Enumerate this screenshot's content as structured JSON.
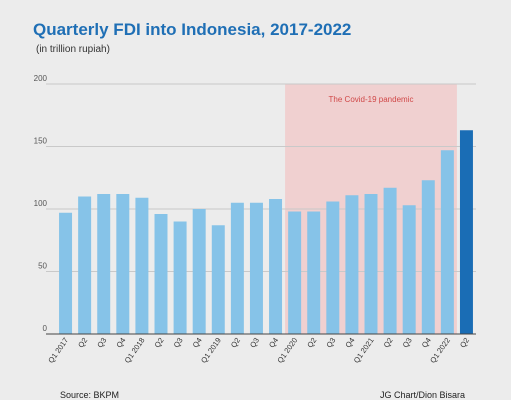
{
  "header": {
    "title": "Quarterly FDI into Indonesia, 2017-2022",
    "subtitle": "(in trillion rupiah)"
  },
  "footer": {
    "source": "Source: BKPM",
    "credit": "JG Chart/Dion Bisara"
  },
  "colors": {
    "bar": "#86c3e8",
    "highlight": "#1a6db5",
    "shade": "#f0d0d0",
    "shade_text": "#d04848",
    "grid": "#c9c9c9",
    "axis": "#444444"
  },
  "chart_data": {
    "type": "bar",
    "title": "Quarterly FDI into Indonesia, 2017-2022",
    "subtitle": "(in trillion rupiah)",
    "categories": [
      "Q1 2017",
      "Q2",
      "Q3",
      "Q4",
      "Q1 2018",
      "Q2",
      "Q3",
      "Q4",
      "Q1 2019",
      "Q2",
      "Q3",
      "Q4",
      "Q1 2020",
      "Q2",
      "Q3",
      "Q4",
      "Q1 2021",
      "Q2",
      "Q3",
      "Q4",
      "Q1 2022",
      "Q2"
    ],
    "values": [
      97,
      110,
      112,
      112,
      109,
      96,
      90,
      100,
      87,
      105,
      105,
      108,
      98,
      98,
      106,
      111,
      112,
      117,
      103,
      123,
      147,
      163
    ],
    "highlight_index": 21,
    "ylim": [
      0,
      200
    ],
    "yticks": [
      0,
      50,
      100,
      150,
      200
    ],
    "grid": true,
    "annotation": {
      "label": "The Covid-19 pandemic",
      "start_index": 12,
      "end_index": 20
    }
  }
}
